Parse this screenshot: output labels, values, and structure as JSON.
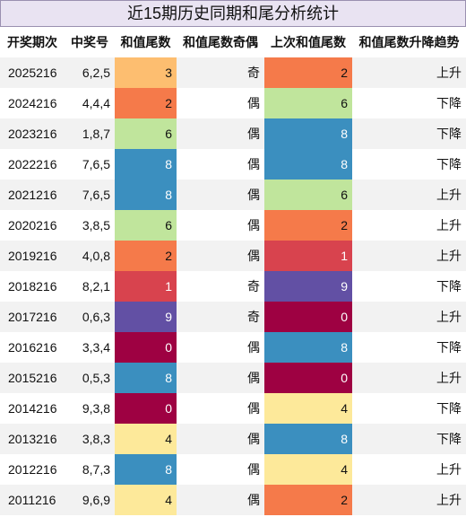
{
  "title": "近15期历史同期和尾分析统计",
  "table": {
    "headers": [
      "开奖期次",
      "中奖号",
      "和值尾数",
      "和值尾数奇偶",
      "上次和值尾数",
      "和值尾数升降趋势"
    ],
    "rows": [
      [
        "2025216",
        "6,2,5",
        3,
        "奇",
        2,
        "上升"
      ],
      [
        "2024216",
        "4,4,4",
        2,
        "偶",
        6,
        "下降"
      ],
      [
        "2023216",
        "1,8,7",
        6,
        "偶",
        8,
        "下降"
      ],
      [
        "2022216",
        "7,6,5",
        8,
        "偶",
        8,
        "下降"
      ],
      [
        "2021216",
        "7,6,5",
        8,
        "偶",
        6,
        "上升"
      ],
      [
        "2020216",
        "3,8,5",
        6,
        "偶",
        2,
        "上升"
      ],
      [
        "2019216",
        "4,0,8",
        2,
        "偶",
        1,
        "上升"
      ],
      [
        "2018216",
        "8,2,1",
        1,
        "奇",
        9,
        "下降"
      ],
      [
        "2017216",
        "0,6,3",
        9,
        "奇",
        0,
        "上升"
      ],
      [
        "2016216",
        "3,3,4",
        0,
        "偶",
        8,
        "下降"
      ],
      [
        "2015216",
        "0,5,3",
        8,
        "偶",
        0,
        "上升"
      ],
      [
        "2014216",
        "9,3,8",
        0,
        "偶",
        4,
        "下降"
      ],
      [
        "2013216",
        "3,8,3",
        4,
        "偶",
        8,
        "下降"
      ],
      [
        "2012216",
        "8,7,3",
        8,
        "偶",
        4,
        "上升"
      ],
      [
        "2011216",
        "9,6,9",
        4,
        "偶",
        2,
        "上升"
      ]
    ],
    "digit_colors": {
      "0": "#9e0142",
      "1": "#d8434e",
      "2": "#f57a4a",
      "3": "#fdbe70",
      "4": "#fde99a",
      "6": "#c0e59c",
      "8": "#3b8fbf",
      "9": "#6250a4"
    }
  }
}
